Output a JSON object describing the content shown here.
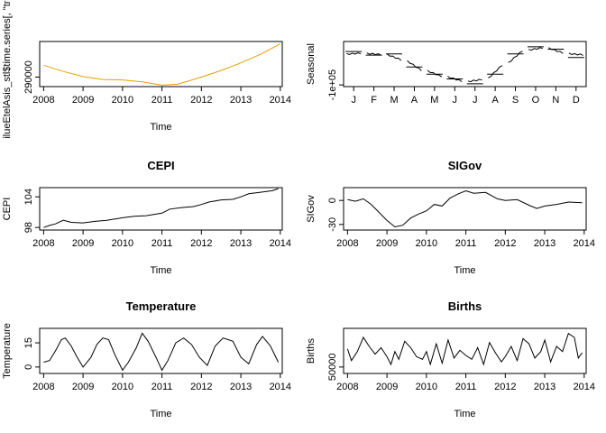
{
  "chart_data": [
    {
      "type": "line",
      "title": "",
      "xlabel": "Time",
      "ylabel": "ilueEtelAsis_stl$time.series[, \"tren",
      "xlim": [
        2007.9,
        2014.05
      ],
      "ylim": [
        288000,
        297500
      ],
      "x_ticks": [
        2008,
        2009,
        2010,
        2011,
        2012,
        2013,
        2014
      ],
      "x_tick_labels": [
        "2008",
        "2009",
        "2010",
        "2011",
        "2012",
        "2013",
        "2014"
      ],
      "y_ticks": [
        290000
      ],
      "y_tick_labels": [
        "290000"
      ],
      "line_color": "#E69F00",
      "series": [
        {
          "x": [
            2008.0,
            2008.5,
            2009.0,
            2009.5,
            2010.0,
            2010.5,
            2011.0,
            2011.4,
            2012.0,
            2012.5,
            2013.0,
            2013.5,
            2014.0
          ],
          "values": [
            292500,
            291200,
            290100,
            289500,
            289400,
            289000,
            288300,
            288500,
            290000,
            291400,
            293000,
            294800,
            297000
          ]
        }
      ]
    },
    {
      "type": "line",
      "title": "",
      "xlabel": "",
      "ylabel": "Seasonal",
      "xlim": [
        0.5,
        12.5
      ],
      "ylim": [
        -107000,
        82000
      ],
      "x_ticks": [
        1,
        2,
        3,
        4,
        5,
        6,
        7,
        8,
        9,
        10,
        11,
        12
      ],
      "x_tick_labels": [
        "J",
        "F",
        "M",
        "A",
        "M",
        "J",
        "J",
        "A",
        "S",
        "O",
        "N",
        "D"
      ],
      "y_ticks": [
        -100000
      ],
      "y_tick_labels": [
        "-1e+05"
      ],
      "line_color": "#000000",
      "month_means": [
        40000,
        25000,
        30000,
        -25000,
        -55000,
        -75000,
        -95000,
        -55000,
        30000,
        60000,
        50000,
        15000
      ]
    },
    {
      "type": "line",
      "title": "CEPI",
      "xlabel": "Time",
      "ylabel": "CEPI",
      "xlim": [
        2007.9,
        2014.05
      ],
      "ylim": [
        97.5,
        105.8
      ],
      "x_ticks": [
        2008,
        2009,
        2010,
        2011,
        2012,
        2013,
        2014
      ],
      "x_tick_labels": [
        "2008",
        "2009",
        "2010",
        "2011",
        "2012",
        "2013",
        "2014"
      ],
      "y_ticks": [
        98,
        104
      ],
      "y_tick_labels": [
        "98",
        "104"
      ],
      "line_color": "#000000",
      "series": [
        {
          "x": [
            2008.0,
            2008.15,
            2008.3,
            2008.5,
            2008.7,
            2009.0,
            2009.3,
            2009.6,
            2010.0,
            2010.3,
            2010.6,
            2011.0,
            2011.2,
            2011.5,
            2011.8,
            2012.0,
            2012.2,
            2012.5,
            2012.8,
            2013.0,
            2013.2,
            2013.5,
            2013.8,
            2013.95
          ],
          "values": [
            98.0,
            98.4,
            98.7,
            99.4,
            99.0,
            98.9,
            99.2,
            99.4,
            99.9,
            100.2,
            100.3,
            100.8,
            101.6,
            101.9,
            102.1,
            102.5,
            103.0,
            103.4,
            103.5,
            104.0,
            104.6,
            104.9,
            105.2,
            105.6
          ]
        }
      ]
    },
    {
      "type": "line",
      "title": "SIGov",
      "xlabel": "Time",
      "ylabel": "SIGov",
      "xlim": [
        2007.9,
        2014.05
      ],
      "ylim": [
        -37,
        16
      ],
      "x_ticks": [
        2008,
        2009,
        2010,
        2011,
        2012,
        2013,
        2014
      ],
      "x_tick_labels": [
        "2008",
        "2009",
        "2010",
        "2011",
        "2012",
        "2013",
        "2014"
      ],
      "y_ticks": [
        -30,
        0
      ],
      "y_tick_labels": [
        "-30",
        "0"
      ],
      "line_color": "#000000",
      "series": [
        {
          "x": [
            2008.0,
            2008.2,
            2008.4,
            2008.6,
            2008.8,
            2009.0,
            2009.2,
            2009.4,
            2009.6,
            2009.8,
            2010.0,
            2010.2,
            2010.4,
            2010.6,
            2010.8,
            2011.0,
            2011.2,
            2011.5,
            2011.8,
            2012.0,
            2012.3,
            2012.6,
            2012.8,
            2013.0,
            2013.3,
            2013.6,
            2013.95
          ],
          "values": [
            1,
            -1,
            2,
            -5,
            -15,
            -25,
            -33,
            -31,
            -22,
            -17,
            -13,
            -5,
            -7,
            3,
            8,
            12,
            9,
            10,
            2,
            0,
            1,
            -6,
            -10,
            -7,
            -5,
            -2,
            -3
          ]
        }
      ]
    },
    {
      "type": "line",
      "title": "Temperature",
      "xlabel": "Time",
      "ylabel": "Temperature",
      "xlim": [
        2007.9,
        2014.05
      ],
      "ylim": [
        -4,
        24
      ],
      "x_ticks": [
        2008,
        2009,
        2010,
        2011,
        2012,
        2013,
        2014
      ],
      "x_tick_labels": [
        "2008",
        "2009",
        "2010",
        "2011",
        "2012",
        "2013",
        "2014"
      ],
      "y_ticks": [
        0,
        15
      ],
      "y_tick_labels": [
        "0",
        "15"
      ],
      "line_color": "#000000",
      "series": [
        {
          "x": [
            2008.0,
            2008.15,
            2008.3,
            2008.45,
            2008.55,
            2008.7,
            2008.85,
            2009.0,
            2009.2,
            2009.35,
            2009.5,
            2009.65,
            2009.8,
            2010.0,
            2010.15,
            2010.35,
            2010.5,
            2010.65,
            2010.85,
            2011.0,
            2011.15,
            2011.35,
            2011.55,
            2011.75,
            2011.95,
            2012.15,
            2012.35,
            2012.55,
            2012.8,
            2013.0,
            2013.2,
            2013.4,
            2013.55,
            2013.75,
            2013.95
          ],
          "values": [
            3,
            4,
            10,
            17,
            18,
            13,
            6,
            0,
            6,
            14,
            18,
            17,
            8,
            -2,
            3,
            12,
            21,
            16,
            6,
            -2,
            4,
            15,
            18,
            14,
            6,
            1,
            13,
            18,
            16,
            6,
            2,
            14,
            19,
            13,
            3
          ]
        }
      ]
    },
    {
      "type": "line",
      "title": "Births",
      "xlabel": "Time",
      "ylabel": "Births",
      "xlim": [
        2007.9,
        2014.05
      ],
      "ylim": [
        45000,
        80000
      ],
      "x_ticks": [
        2008,
        2009,
        2010,
        2011,
        2012,
        2013,
        2014
      ],
      "x_tick_labels": [
        "2008",
        "2009",
        "2010",
        "2011",
        "2012",
        "2013",
        "2014"
      ],
      "y_ticks": [
        50000
      ],
      "y_tick_labels": [
        "50000"
      ],
      "line_color": "#000000",
      "series": [
        {
          "x": [
            2008.0,
            2008.1,
            2008.25,
            2008.4,
            2008.55,
            2008.7,
            2008.85,
            2009.0,
            2009.1,
            2009.2,
            2009.3,
            2009.45,
            2009.6,
            2009.75,
            2009.9,
            2010.0,
            2010.1,
            2010.25,
            2010.4,
            2010.55,
            2010.7,
            2010.85,
            2011.0,
            2011.15,
            2011.3,
            2011.45,
            2011.6,
            2011.75,
            2011.9,
            2012.0,
            2012.15,
            2012.3,
            2012.45,
            2012.6,
            2012.75,
            2012.9,
            2013.0,
            2013.15,
            2013.3,
            2013.45,
            2013.6,
            2013.75,
            2013.85,
            2013.95
          ],
          "values": [
            64000,
            55000,
            62000,
            73000,
            66000,
            60000,
            65000,
            58000,
            52000,
            62000,
            56000,
            70000,
            65000,
            58000,
            56000,
            62000,
            52000,
            68000,
            53000,
            71000,
            57000,
            63000,
            59000,
            56000,
            65000,
            52000,
            69000,
            61000,
            54000,
            58000,
            66000,
            55000,
            72000,
            68000,
            57000,
            62000,
            71000,
            54000,
            66000,
            62000,
            76000,
            73000,
            57000,
            61000
          ]
        }
      ]
    }
  ]
}
